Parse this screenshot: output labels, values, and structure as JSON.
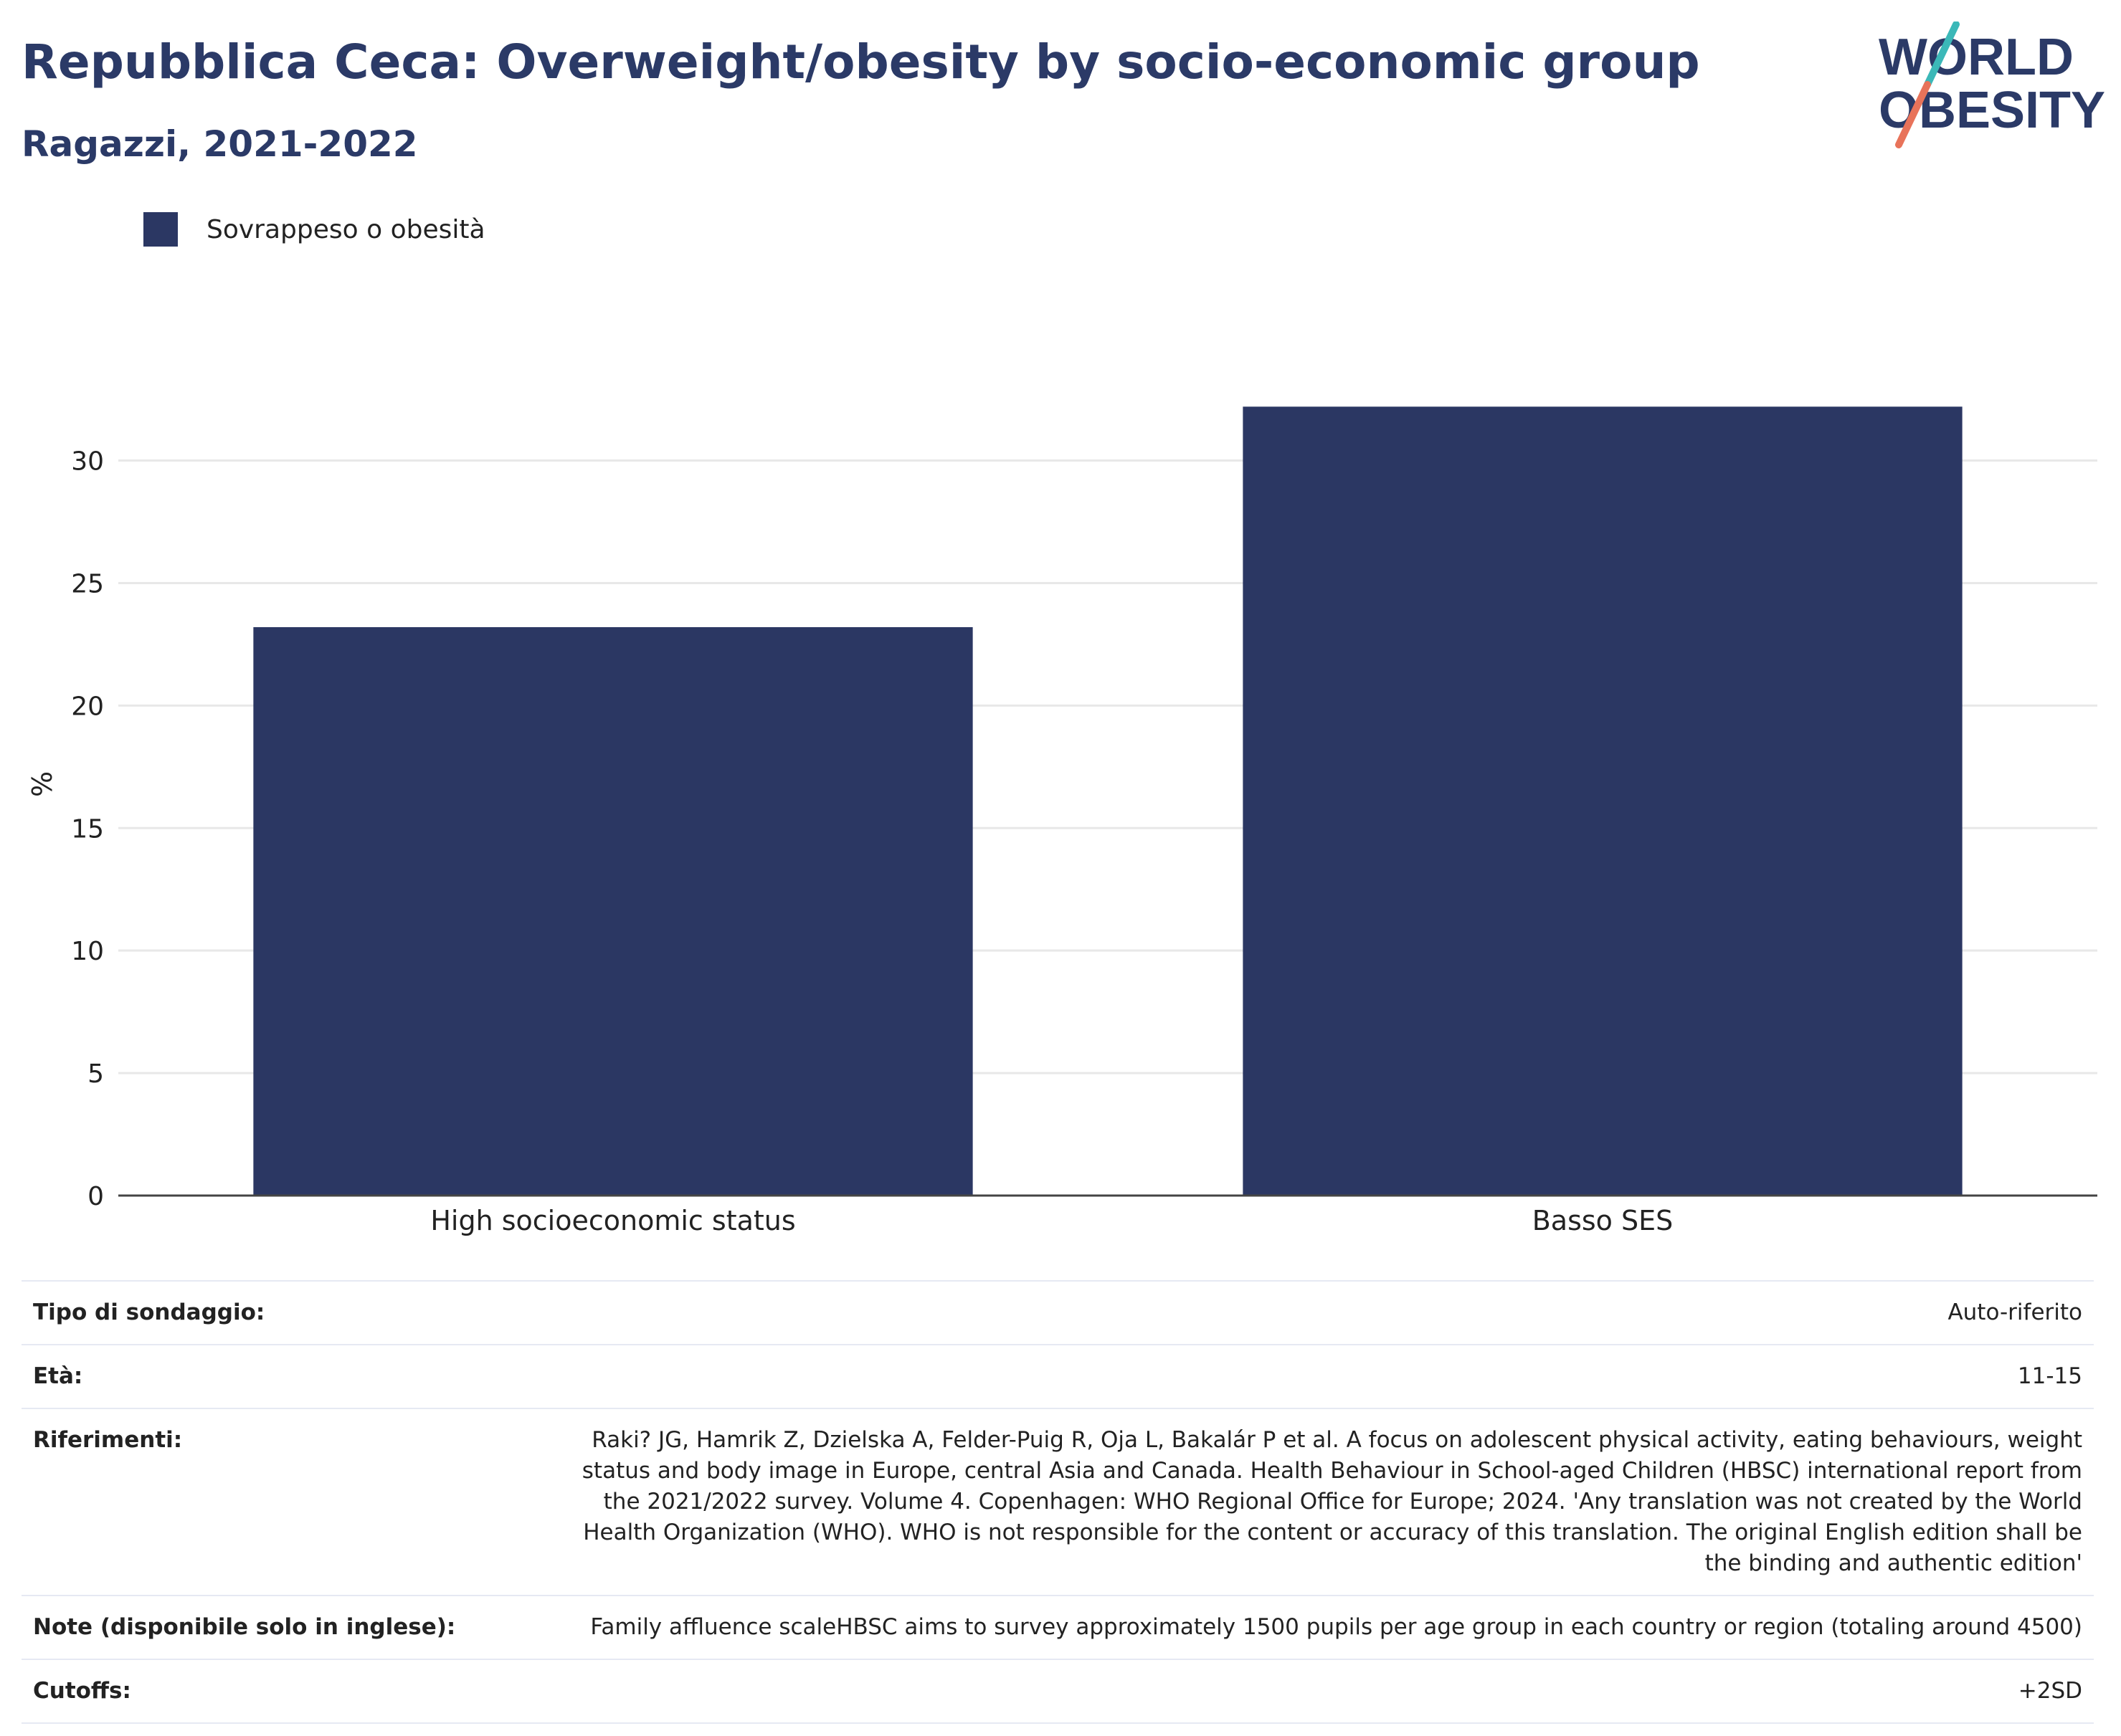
{
  "header": {
    "title": "Repubblica Ceca: Overweight/obesity by socio-economic group",
    "subtitle": "Ragazzi, 2021-2022"
  },
  "logo": {
    "line1": "WORLD",
    "line2": "OBESITY",
    "colors": {
      "text": "#2b3a67",
      "slash_top": "#3bb8b8",
      "slash_bottom": "#e8735a"
    }
  },
  "legend": {
    "items": [
      {
        "label": "Sovrappeso o obesità",
        "color": "#2b3763"
      }
    ]
  },
  "chart_data": {
    "type": "bar",
    "categories": [
      "High socioeconomic status",
      "Basso SES"
    ],
    "series": [
      {
        "name": "Sovrappeso o obesità",
        "values": [
          23.2,
          32.2
        ],
        "color": "#2b3763"
      }
    ],
    "ylabel": "%",
    "xlabel": "",
    "ylim": [
      0,
      33
    ],
    "yticks": [
      0,
      5,
      10,
      15,
      20,
      25,
      30
    ],
    "grid": true
  },
  "info": [
    {
      "key": "Tipo di sondaggio:",
      "value": "Auto-riferito"
    },
    {
      "key": "Età:",
      "value": "11-15"
    },
    {
      "key": "Riferimenti:",
      "value": "Raki? JG, Hamrik Z, Dzielska A, Felder-Puig R, Oja L, Bakalár P et al. A focus on adolescent physical activity, eating behaviours, weight status and body image in Europe, central Asia and Canada. Health Behaviour in School-aged Children (HBSC) international report from the 2021/2022 survey. Volume 4. Copenhagen: WHO Regional Office for Europe; 2024. 'Any translation was not created by the World Health Organization (WHO). WHO is not responsible for the content or accuracy of this translation. The original English edition shall be the binding and authentic edition'"
    },
    {
      "key": "Note (disponibile solo in inglese):",
      "value": "Family affluence scaleHBSC aims to survey approximately 1500 pupils per age group in each country or region (totaling around 4500)"
    },
    {
      "key": "Cutoffs:",
      "value": "+2SD"
    }
  ]
}
